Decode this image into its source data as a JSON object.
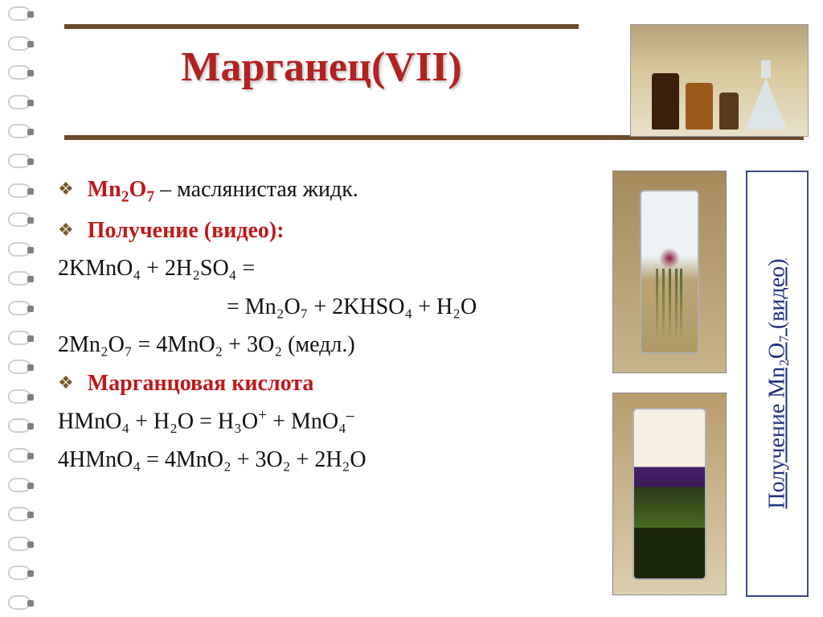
{
  "title": "Марганец(VII)",
  "accent_color": "#b22222",
  "rule_color": "#6a4a2a",
  "link_color": "#203080",
  "content": {
    "l1_pre": "Mn",
    "l1_sub1": "2",
    "l1_mid": "O",
    "l1_sub2": "7",
    "l1_post": " – маслянистая жидк.",
    "l2": "Получение (видео):",
    "l3": "2KMnO₄ + 2H₂SO₄ =",
    "l4": "= Mn₂O₇ + 2KHSO₄ + H₂O",
    "l5": "2Mn₂O₇ = 4MnO₂ + 3O₂ (медл.)",
    "l6": "Марганцовая кислота",
    "l7_a": "HMnO₄ + H₂O = H₃O",
    "l7_b": " + MnO₄",
    "l8": "4HMnO₄ = 4MnO₂ + 3O₂ + 2H₂O"
  },
  "caption": "Получение Mn₂O₇ (видео)"
}
